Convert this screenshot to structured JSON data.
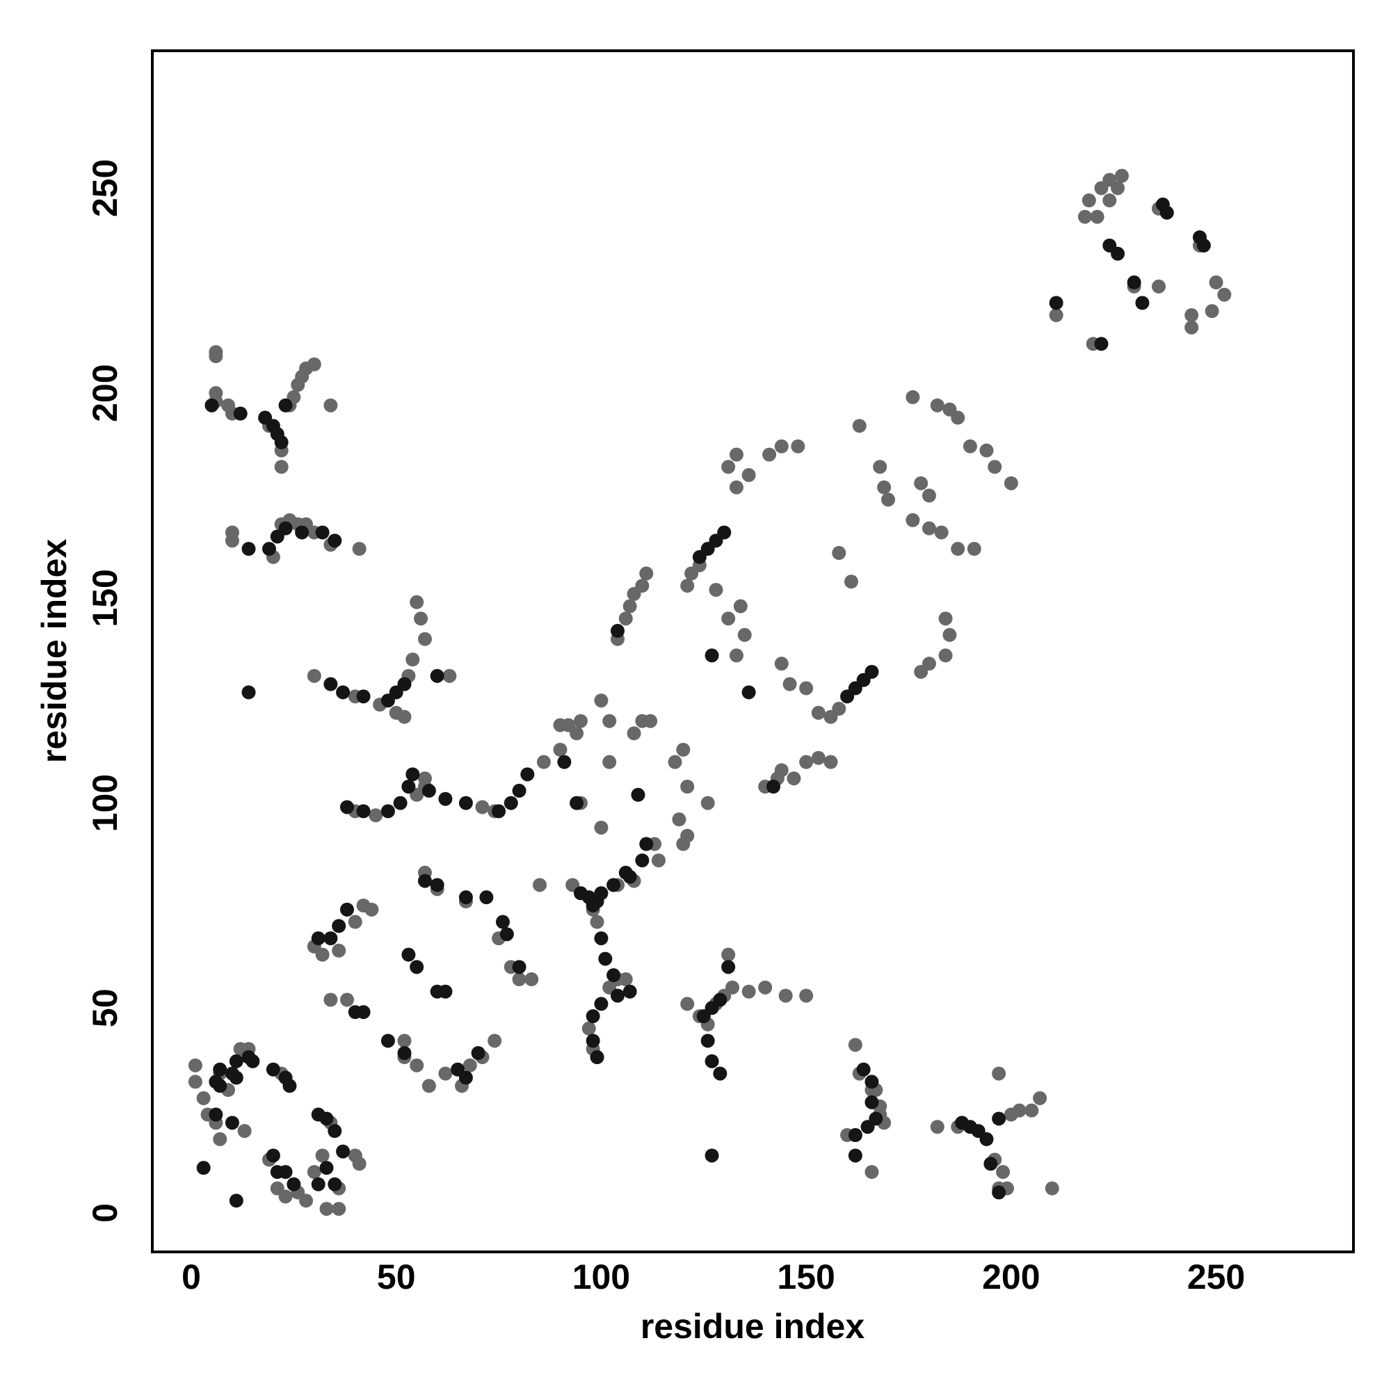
{
  "chart_data": {
    "type": "scatter",
    "xlabel": "residue index",
    "ylabel": "residue index",
    "xlim": [
      -9.5,
      283.5
    ],
    "ylim": [
      -9.5,
      283.5
    ],
    "xticks": [
      0,
      50,
      100,
      150,
      200,
      250
    ],
    "yticks": [
      0,
      50,
      100,
      150,
      200,
      250
    ],
    "series": [
      {
        "color": "#686868",
        "x": [
          6,
          6,
          6,
          6,
          9,
          10,
          22,
          22,
          25,
          26,
          27,
          28,
          30,
          34,
          19,
          24,
          197,
          199,
          198,
          196,
          200,
          202,
          205,
          207,
          197,
          182,
          187,
          210,
          10,
          10,
          20,
          22,
          24,
          26,
          30,
          34,
          41,
          28,
          160,
          162,
          166,
          168,
          169,
          168,
          166,
          163,
          162,
          167,
          30,
          40,
          46,
          50,
          52,
          54,
          55,
          56,
          57,
          63,
          53,
          121,
          124,
          126,
          128,
          130,
          132,
          136,
          140,
          145,
          150,
          131,
          86,
          90,
          92,
          94,
          95,
          100,
          102,
          108,
          110,
          112,
          118,
          120,
          121,
          119,
          120,
          121,
          126,
          113,
          114,
          95,
          100,
          102,
          85,
          93,
          90,
          104,
          108,
          104,
          106,
          107,
          108,
          110,
          111,
          121,
          122,
          124,
          128,
          131,
          134,
          135,
          133,
          144,
          146,
          150,
          153,
          156,
          158,
          161,
          158,
          176,
          180,
          183,
          178,
          182,
          185,
          187,
          190,
          194,
          196,
          200,
          187,
          191,
          180,
          178,
          180,
          184,
          185,
          184,
          131,
          133,
          136,
          141,
          144,
          148,
          163,
          168,
          169,
          170,
          176,
          140,
          143,
          144,
          147,
          150,
          153,
          156,
          133,
          30,
          32,
          34,
          40,
          42,
          44,
          36,
          55,
          58,
          62,
          66,
          68,
          71,
          74,
          75,
          78,
          80,
          83,
          67,
          57,
          60,
          52,
          52,
          38,
          1,
          1,
          3,
          4,
          6,
          7,
          7,
          9,
          12,
          14,
          19,
          21,
          23,
          26,
          28,
          30,
          32,
          33,
          36,
          36,
          41,
          40,
          34,
          22,
          13,
          97,
          98,
          99,
          102,
          104,
          106,
          99,
          98,
          45,
          40,
          55,
          57,
          57,
          71,
          74,
          218,
          221,
          219,
          222,
          224,
          226,
          227,
          224,
          236,
          246,
          244,
          244,
          249,
          250,
          252,
          211,
          220,
          230,
          236
        ],
        "values": [
          210,
          209,
          200,
          198,
          197,
          195,
          182,
          186,
          199,
          202,
          204,
          206,
          207,
          197,
          192,
          197,
          6,
          6,
          10,
          13,
          24,
          25,
          25,
          28,
          34,
          21,
          21,
          6,
          166,
          164,
          160,
          168,
          169,
          168,
          166,
          163,
          162,
          168,
          19,
          19,
          10,
          24,
          22,
          26,
          30,
          34,
          41,
          30,
          131,
          126,
          124,
          122,
          121,
          135,
          149,
          145,
          140,
          131,
          131,
          51,
          48,
          46,
          51,
          53,
          55,
          54,
          55,
          53,
          53,
          63,
          110,
          119,
          119,
          117,
          120,
          125,
          120,
          117,
          120,
          120,
          110,
          113,
          104,
          96,
          90,
          92,
          100,
          90,
          86,
          100,
          94,
          110,
          80,
          80,
          113,
          80,
          81,
          140,
          145,
          148,
          151,
          153,
          156,
          153,
          156,
          158,
          152,
          145,
          148,
          141,
          136,
          134,
          129,
          128,
          122,
          121,
          123,
          154,
          161,
          169,
          167,
          166,
          178,
          197,
          196,
          194,
          187,
          186,
          182,
          178,
          162,
          162,
          175,
          132,
          134,
          136,
          141,
          145,
          182,
          185,
          180,
          185,
          187,
          187,
          192,
          182,
          177,
          174,
          199,
          104,
          106,
          108,
          106,
          110,
          111,
          110,
          177,
          65,
          63,
          52,
          71,
          75,
          74,
          64,
          36,
          31,
          34,
          31,
          36,
          38,
          42,
          67,
          60,
          57,
          57,
          76,
          83,
          79,
          42,
          38,
          52,
          36,
          32,
          28,
          24,
          22,
          18,
          34,
          30,
          40,
          40,
          13,
          6,
          4,
          5,
          3,
          10,
          14,
          1,
          1,
          6,
          12,
          14,
          22,
          34,
          20,
          45,
          40,
          38,
          55,
          57,
          57,
          71,
          74,
          97,
          98,
          102,
          104,
          106,
          99,
          98,
          243,
          243,
          247,
          250,
          252,
          250,
          253,
          247,
          245,
          236,
          216,
          219,
          220,
          227,
          224,
          219,
          212,
          226,
          226
        ]
      },
      {
        "color": "#151515",
        "x": [
          5,
          12,
          18,
          20,
          21,
          22,
          23,
          197,
          195,
          194,
          192,
          190,
          188,
          197,
          14,
          19,
          21,
          23,
          27,
          32,
          35,
          162,
          162,
          165,
          167,
          166,
          166,
          164,
          14,
          127,
          34,
          37,
          42,
          48,
          50,
          52,
          60,
          129,
          127,
          126,
          125,
          127,
          129,
          131,
          38,
          42,
          48,
          51,
          53,
          54,
          58,
          62,
          67,
          75,
          78,
          80,
          82,
          99,
          98,
          98,
          100,
          104,
          107,
          103,
          101,
          100,
          98,
          100,
          103,
          107,
          95,
          97,
          99,
          106,
          110,
          111,
          109,
          91,
          94,
          31,
          33,
          35,
          37,
          33,
          35,
          31,
          24,
          23,
          20,
          15,
          11,
          7,
          7,
          6,
          10,
          11,
          14,
          10,
          6,
          11,
          3,
          20,
          21,
          23,
          25,
          31,
          34,
          36,
          38,
          40,
          42,
          48,
          52,
          53,
          55,
          60,
          62,
          65,
          67,
          70,
          72,
          67,
          60,
          57,
          76,
          77,
          80,
          124,
          126,
          128,
          130,
          160,
          162,
          164,
          166,
          127,
          136,
          142,
          104,
          211,
          222,
          224,
          226,
          237,
          238,
          246,
          247,
          230,
          232
        ],
        "values": [
          197,
          195,
          194,
          192,
          190,
          188,
          197,
          5,
          12,
          18,
          20,
          21,
          22,
          23,
          162,
          162,
          165,
          167,
          166,
          166,
          164,
          14,
          19,
          21,
          23,
          27,
          32,
          35,
          127,
          14,
          129,
          127,
          126,
          125,
          127,
          129,
          131,
          34,
          37,
          42,
          48,
          50,
          52,
          60,
          99,
          98,
          98,
          100,
          104,
          107,
          103,
          101,
          100,
          98,
          100,
          103,
          107,
          38,
          42,
          48,
          51,
          53,
          54,
          58,
          62,
          67,
          75,
          78,
          80,
          82,
          78,
          77,
          76,
          83,
          86,
          90,
          102,
          110,
          100,
          24,
          23,
          20,
          15,
          11,
          7,
          7,
          31,
          33,
          35,
          37,
          33,
          35,
          31,
          32,
          34,
          37,
          38,
          22,
          24,
          3,
          11,
          14,
          10,
          10,
          7,
          67,
          67,
          70,
          74,
          49,
          49,
          42,
          39,
          63,
          60,
          54,
          54,
          35,
          33,
          39,
          77,
          77,
          80,
          81,
          71,
          68,
          60,
          160,
          162,
          164,
          166,
          126,
          128,
          130,
          132,
          136,
          127,
          104,
          142,
          222,
          212,
          236,
          234,
          246,
          244,
          238,
          236,
          227,
          222
        ]
      }
    ]
  }
}
